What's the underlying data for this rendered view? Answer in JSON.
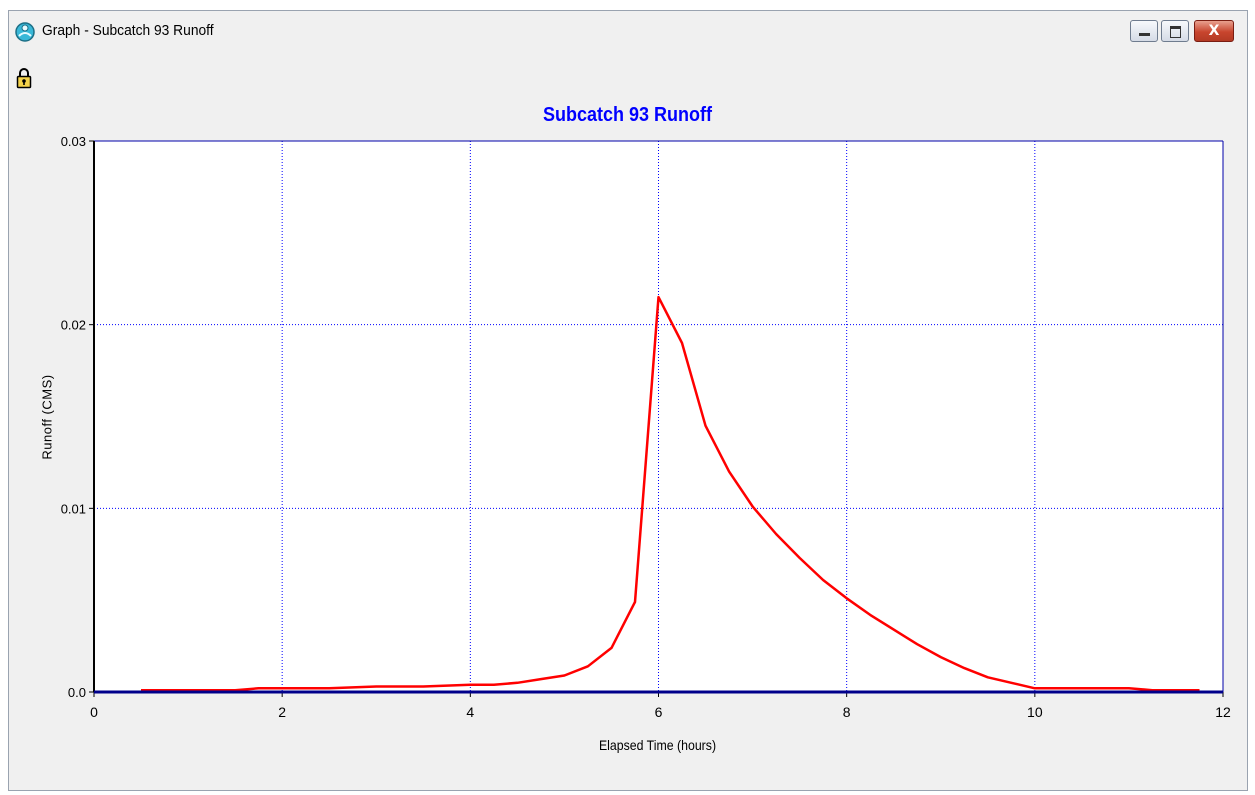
{
  "window": {
    "title": "Graph - Subcatch 93 Runoff",
    "app_icon": "swmm-app-icon",
    "controls": {
      "minimize": "minimize-icon",
      "maximize": "maximize-icon",
      "close": "close-icon"
    },
    "close_color": "#c8452e"
  },
  "toolbar": {
    "lock_icon": "lock-icon"
  },
  "chart_data": {
    "type": "line",
    "title": "Subcatch 93 Runoff",
    "title_color": "#0000ff",
    "xlabel": "Elapsed Time (hours)",
    "ylabel": "Runoff (CMS)",
    "xlim": [
      0,
      12
    ],
    "ylim": [
      0,
      0.03
    ],
    "x_ticks": [
      "0",
      "2",
      "4",
      "6",
      "8",
      "10",
      "12"
    ],
    "y_ticks": [
      "0.0",
      "0.01",
      "0.02",
      "0.03"
    ],
    "grid": true,
    "grid_color": "#0000ff",
    "series": [
      {
        "color": "#ff0000",
        "x": [
          0.5,
          1.0,
          1.5,
          1.75,
          2.0,
          2.5,
          3.0,
          3.5,
          4.0,
          4.25,
          4.5,
          4.75,
          5.0,
          5.25,
          5.5,
          5.75,
          6.0,
          6.25,
          6.5,
          6.75,
          7.0,
          7.25,
          7.5,
          7.75,
          8.0,
          8.25,
          8.5,
          8.75,
          9.0,
          9.25,
          9.5,
          9.75,
          10.0,
          10.25,
          10.5,
          11.0,
          11.25,
          11.75
        ],
        "y": [
          0.0001,
          0.0001,
          0.0001,
          0.0002,
          0.0002,
          0.0002,
          0.0003,
          0.0003,
          0.0004,
          0.0004,
          0.0005,
          0.0007,
          0.0009,
          0.0014,
          0.0024,
          0.0049,
          0.0215,
          0.019,
          0.0145,
          0.012,
          0.0101,
          0.0086,
          0.0073,
          0.0061,
          0.0051,
          0.0042,
          0.0034,
          0.0026,
          0.0019,
          0.0013,
          0.0008,
          0.0005,
          0.0002,
          0.0002,
          0.0002,
          0.0002,
          0.0001,
          0.0001
        ]
      }
    ]
  }
}
